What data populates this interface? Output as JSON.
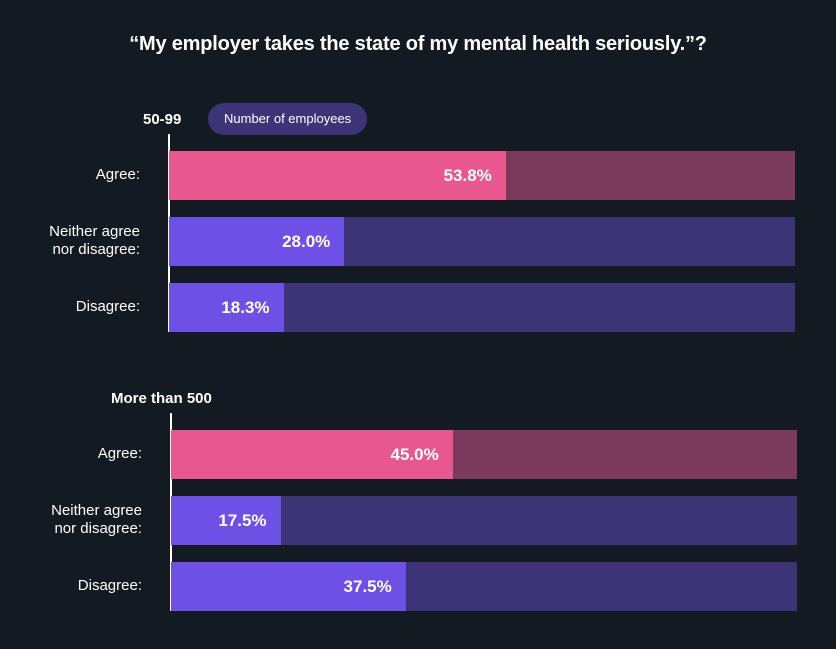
{
  "chart_data": {
    "type": "bar",
    "orientation": "horizontal",
    "stacked_to_100": true,
    "title": "“My employer takes the state of my mental health seriously.”?",
    "badge": "Number of employees",
    "xlim": [
      0,
      100
    ],
    "colors": {
      "agree": "#e8588f",
      "agree_track": "#7b3a5c",
      "other": "#6d50e6",
      "other_track": "#3d3478",
      "axis": "#ffffff",
      "background": "#141a21"
    },
    "groups": [
      {
        "name": "50-99",
        "categories": [
          "Agree:",
          "Neither agree nor disagree:",
          "Disagree:"
        ],
        "label_lines": [
          [
            "Agree:"
          ],
          [
            "Neither agree",
            "nor disagree:"
          ],
          [
            "Disagree:"
          ]
        ],
        "values": [
          53.8,
          28.0,
          18.3
        ],
        "value_labels": [
          "53.8%",
          "28.0%",
          "18.3%"
        ]
      },
      {
        "name": "More than 500",
        "categories": [
          "Agree:",
          "Neither agree nor disagree:",
          "Disagree:"
        ],
        "label_lines": [
          [
            "Agree:"
          ],
          [
            "Neither agree",
            "nor disagree:"
          ],
          [
            "Disagree:"
          ]
        ],
        "values": [
          45.0,
          17.5,
          37.5
        ],
        "value_labels": [
          "45.0%",
          "17.5%",
          "37.5%"
        ]
      }
    ]
  }
}
